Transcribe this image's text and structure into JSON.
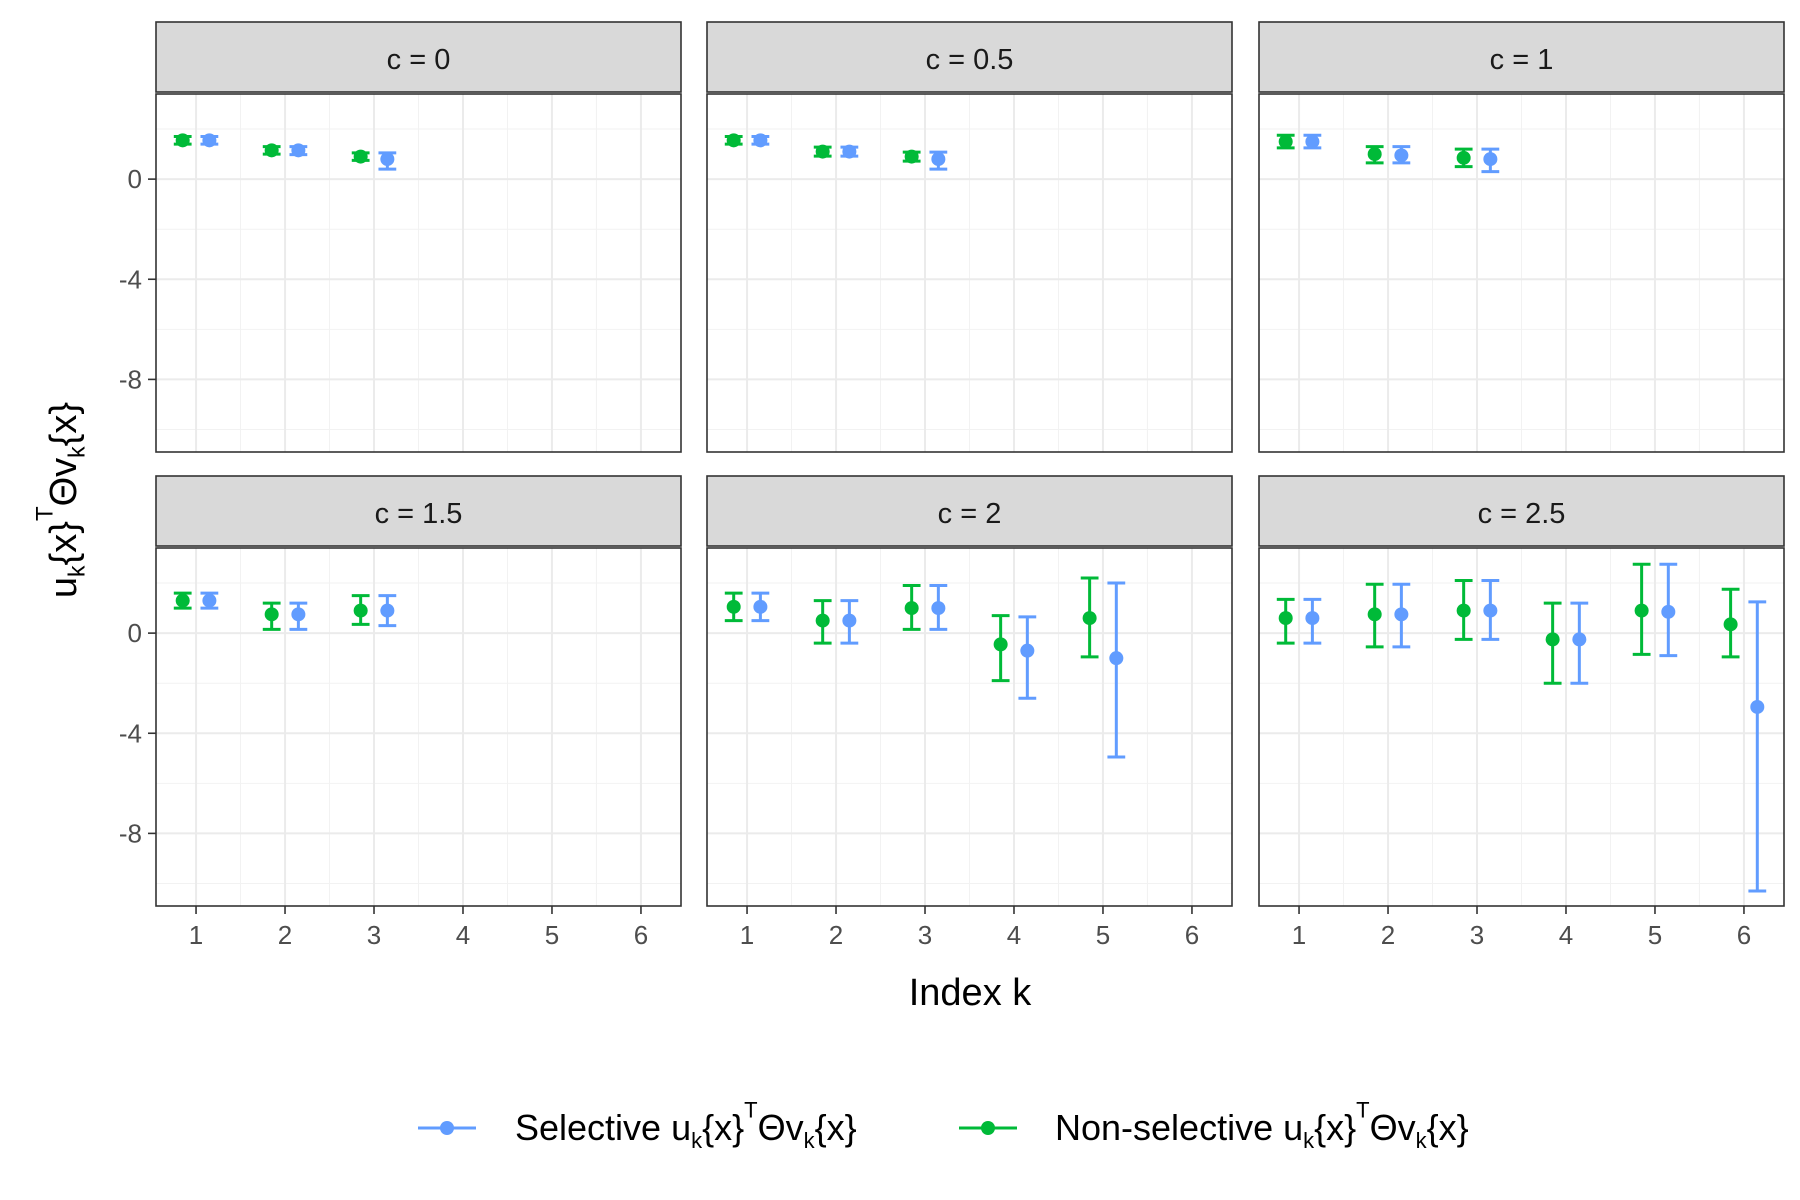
{
  "chart_data": {
    "type": "scatter",
    "subtype": "point-with-error-bars",
    "facet_variable": "c",
    "xlabel": "Index k",
    "ylabel": {
      "text_parts": [
        "u",
        "k",
        "{x}",
        "T",
        "Θv",
        "k",
        "{x}"
      ]
    },
    "x_ticks": [
      1,
      2,
      3,
      4,
      5,
      6
    ],
    "y_ticks": [
      0,
      -4,
      -8
    ],
    "xlim": [
      0.55,
      6.45
    ],
    "ylim": [
      -10.9,
      3.4
    ],
    "grid": true,
    "legend_position": "bottom",
    "series": [
      {
        "key": "selective",
        "color": "#619CFF",
        "legend_parts": [
          "Selective u",
          "k",
          "{x}",
          "T",
          "Θv",
          "k",
          "{x}"
        ]
      },
      {
        "key": "nonselective",
        "color": "#00BA38",
        "legend_parts": [
          "Non-selective u",
          "k",
          "{x}",
          "T",
          "Θv",
          "k",
          "{x}"
        ]
      }
    ],
    "panels": [
      {
        "label": "c = 0",
        "nonselective": [
          {
            "k": 1,
            "y": 1.55,
            "lo": 1.4,
            "hi": 1.7
          },
          {
            "k": 2,
            "y": 1.15,
            "lo": 1.0,
            "hi": 1.3
          },
          {
            "k": 3,
            "y": 0.9,
            "lo": 0.75,
            "hi": 1.05
          }
        ],
        "selective": [
          {
            "k": 1,
            "y": 1.55,
            "lo": 1.4,
            "hi": 1.7
          },
          {
            "k": 2,
            "y": 1.15,
            "lo": 0.98,
            "hi": 1.3
          },
          {
            "k": 3,
            "y": 0.8,
            "lo": 0.4,
            "hi": 1.05
          }
        ]
      },
      {
        "label": "c = 0.5",
        "nonselective": [
          {
            "k": 1,
            "y": 1.55,
            "lo": 1.4,
            "hi": 1.7
          },
          {
            "k": 2,
            "y": 1.1,
            "lo": 0.92,
            "hi": 1.28
          },
          {
            "k": 3,
            "y": 0.9,
            "lo": 0.72,
            "hi": 1.08
          }
        ],
        "selective": [
          {
            "k": 1,
            "y": 1.55,
            "lo": 1.4,
            "hi": 1.7
          },
          {
            "k": 2,
            "y": 1.1,
            "lo": 0.92,
            "hi": 1.28
          },
          {
            "k": 3,
            "y": 0.8,
            "lo": 0.4,
            "hi": 1.08
          }
        ]
      },
      {
        "label": "c = 1",
        "nonselective": [
          {
            "k": 1,
            "y": 1.5,
            "lo": 1.25,
            "hi": 1.75
          },
          {
            "k": 2,
            "y": 1.0,
            "lo": 0.65,
            "hi": 1.3
          },
          {
            "k": 3,
            "y": 0.85,
            "lo": 0.5,
            "hi": 1.2
          }
        ],
        "selective": [
          {
            "k": 1,
            "y": 1.5,
            "lo": 1.25,
            "hi": 1.75
          },
          {
            "k": 2,
            "y": 0.95,
            "lo": 0.65,
            "hi": 1.3
          },
          {
            "k": 3,
            "y": 0.8,
            "lo": 0.3,
            "hi": 1.2
          }
        ]
      },
      {
        "label": "c = 1.5",
        "nonselective": [
          {
            "k": 1,
            "y": 1.3,
            "lo": 1.0,
            "hi": 1.6
          },
          {
            "k": 2,
            "y": 0.75,
            "lo": 0.15,
            "hi": 1.2
          },
          {
            "k": 3,
            "y": 0.9,
            "lo": 0.35,
            "hi": 1.5
          }
        ],
        "selective": [
          {
            "k": 1,
            "y": 1.3,
            "lo": 1.0,
            "hi": 1.6
          },
          {
            "k": 2,
            "y": 0.75,
            "lo": 0.15,
            "hi": 1.2
          },
          {
            "k": 3,
            "y": 0.9,
            "lo": 0.3,
            "hi": 1.5
          }
        ]
      },
      {
        "label": "c = 2",
        "nonselective": [
          {
            "k": 1,
            "y": 1.05,
            "lo": 0.5,
            "hi": 1.6
          },
          {
            "k": 2,
            "y": 0.5,
            "lo": -0.4,
            "hi": 1.3
          },
          {
            "k": 3,
            "y": 1.0,
            "lo": 0.15,
            "hi": 1.9
          },
          {
            "k": 4,
            "y": -0.45,
            "lo": -1.9,
            "hi": 0.7
          },
          {
            "k": 5,
            "y": 0.6,
            "lo": -0.95,
            "hi": 2.2
          }
        ],
        "selective": [
          {
            "k": 1,
            "y": 1.05,
            "lo": 0.5,
            "hi": 1.6
          },
          {
            "k": 2,
            "y": 0.5,
            "lo": -0.4,
            "hi": 1.3
          },
          {
            "k": 3,
            "y": 1.0,
            "lo": 0.15,
            "hi": 1.9
          },
          {
            "k": 4,
            "y": -0.7,
            "lo": -2.6,
            "hi": 0.65
          },
          {
            "k": 5,
            "y": -1.0,
            "lo": -4.95,
            "hi": 2.0
          }
        ]
      },
      {
        "label": "c = 2.5",
        "nonselective": [
          {
            "k": 1,
            "y": 0.6,
            "lo": -0.4,
            "hi": 1.35
          },
          {
            "k": 2,
            "y": 0.75,
            "lo": -0.55,
            "hi": 1.95
          },
          {
            "k": 3,
            "y": 0.9,
            "lo": -0.25,
            "hi": 2.1
          },
          {
            "k": 4,
            "y": -0.25,
            "lo": -2.0,
            "hi": 1.2
          },
          {
            "k": 5,
            "y": 0.9,
            "lo": -0.85,
            "hi": 2.75
          },
          {
            "k": 6,
            "y": 0.35,
            "lo": -0.95,
            "hi": 1.75
          }
        ],
        "selective": [
          {
            "k": 1,
            "y": 0.6,
            "lo": -0.4,
            "hi": 1.35
          },
          {
            "k": 2,
            "y": 0.75,
            "lo": -0.55,
            "hi": 1.95
          },
          {
            "k": 3,
            "y": 0.9,
            "lo": -0.25,
            "hi": 2.1
          },
          {
            "k": 4,
            "y": -0.25,
            "lo": -2.0,
            "hi": 1.2
          },
          {
            "k": 5,
            "y": 0.85,
            "lo": -0.9,
            "hi": 2.75
          },
          {
            "k": 6,
            "y": -2.95,
            "lo": -10.3,
            "hi": 1.25
          }
        ]
      }
    ]
  }
}
